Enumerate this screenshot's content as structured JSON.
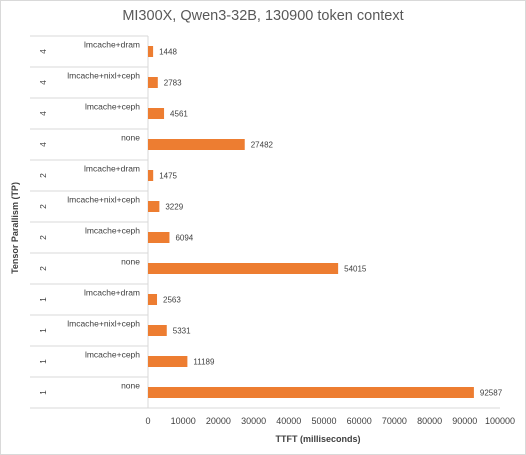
{
  "chart_data": {
    "type": "bar",
    "orientation": "horizontal",
    "title": "MI300X, Qwen3-32B, 130900 token context",
    "xlabel": "TTFT (milliseconds)",
    "ylabel": "Tensor Parallism (TP)",
    "xlim": [
      0,
      100000
    ],
    "xticks": [
      0,
      10000,
      20000,
      30000,
      40000,
      50000,
      60000,
      70000,
      80000,
      90000,
      100000
    ],
    "bar_color": "#ed7d31",
    "grid": false,
    "legend": "none",
    "categories": [
      {
        "group": "4",
        "label": "lmcache+dram"
      },
      {
        "group": "4",
        "label": "lmcache+nixl+ceph"
      },
      {
        "group": "4",
        "label": "lmcache+ceph"
      },
      {
        "group": "4",
        "label": "none"
      },
      {
        "group": "2",
        "label": "lmcache+dram"
      },
      {
        "group": "2",
        "label": "lmcache+nixl+ceph"
      },
      {
        "group": "2",
        "label": "lmcache+ceph"
      },
      {
        "group": "2",
        "label": "none"
      },
      {
        "group": "1",
        "label": "lmcache+dram"
      },
      {
        "group": "1",
        "label": "lmcache+nixl+ceph"
      },
      {
        "group": "1",
        "label": "lmcache+ceph"
      },
      {
        "group": "1",
        "label": "none"
      }
    ],
    "values": [
      1448,
      2783,
      4561,
      27482,
      1475,
      3229,
      6094,
      54015,
      2563,
      5331,
      11189,
      92587
    ]
  }
}
